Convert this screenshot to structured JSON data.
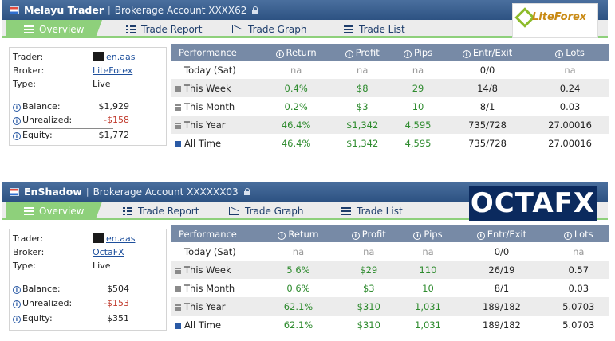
{
  "widgets": [
    {
      "title": "Melayu Trader",
      "account": "Brokerage Account XXXX62",
      "tabs": [
        "Overview",
        "Trade Report",
        "Trade Graph",
        "Trade List"
      ],
      "logo_text": "LiteForex",
      "trader_label": "Trader:",
      "trader": "en.aas",
      "broker_label": "Broker:",
      "broker": "LiteForex",
      "type_label": "Type:",
      "type": "Live",
      "balance_label": "Balance:",
      "balance": "$1,929",
      "unrealized_label": "Unrealized:",
      "unrealized": "-$158",
      "equity_label": "Equity:",
      "equity": "$1,772",
      "headers": [
        "Performance",
        "Return",
        "Profit",
        "Pips",
        "Entr/Exit",
        "Lots"
      ],
      "rows": [
        {
          "label": "Today (Sat)",
          "return": "na",
          "profit": "na",
          "pips": "na",
          "entr": "0/0",
          "lots": "na"
        },
        {
          "label": "This Week",
          "return": "0.4%",
          "profit": "$8",
          "pips": "29",
          "entr": "14/8",
          "lots": "0.24"
        },
        {
          "label": "This Month",
          "return": "0.2%",
          "profit": "$3",
          "pips": "10",
          "entr": "8/1",
          "lots": "0.03"
        },
        {
          "label": "This Year",
          "return": "46.4%",
          "profit": "$1,342",
          "pips": "4,595",
          "entr": "735/728",
          "lots": "27.00016"
        },
        {
          "label": "All Time",
          "return": "46.4%",
          "profit": "$1,342",
          "pips": "4,595",
          "entr": "735/728",
          "lots": "27.00016"
        }
      ]
    },
    {
      "title": "EnShadow",
      "account": "Brokerage Account XXXXXX03",
      "tabs": [
        "Overview",
        "Trade Report",
        "Trade Graph",
        "Trade List"
      ],
      "logo_text": "OCTAFX",
      "trader_label": "Trader:",
      "trader": "en.aas",
      "broker_label": "Broker:",
      "broker": "OctaFX",
      "type_label": "Type:",
      "type": "Live",
      "balance_label": "Balance:",
      "balance": "$504",
      "unrealized_label": "Unrealized:",
      "unrealized": "-$153",
      "equity_label": "Equity:",
      "equity": "$351",
      "headers": [
        "Performance",
        "Return",
        "Profit",
        "Pips",
        "Entr/Exit",
        "Lots"
      ],
      "rows": [
        {
          "label": "Today (Sat)",
          "return": "na",
          "profit": "na",
          "pips": "na",
          "entr": "0/0",
          "lots": "na"
        },
        {
          "label": "This Week",
          "return": "5.6%",
          "profit": "$29",
          "pips": "110",
          "entr": "26/19",
          "lots": "0.57"
        },
        {
          "label": "This Month",
          "return": "0.6%",
          "profit": "$3",
          "pips": "10",
          "entr": "8/1",
          "lots": "0.03"
        },
        {
          "label": "This Year",
          "return": "62.1%",
          "profit": "$310",
          "pips": "1,031",
          "entr": "189/182",
          "lots": "5.0703"
        },
        {
          "label": "All Time",
          "return": "62.1%",
          "profit": "$310",
          "pips": "1,031",
          "entr": "189/182",
          "lots": "5.0703"
        }
      ]
    }
  ],
  "colors": {
    "titlebar": "#2d5282",
    "accent_green": "#8ed07b",
    "table_header": "#778aa6",
    "positive": "#2e8b2e",
    "negative": "#c0392b",
    "link": "#1d4f9c"
  }
}
